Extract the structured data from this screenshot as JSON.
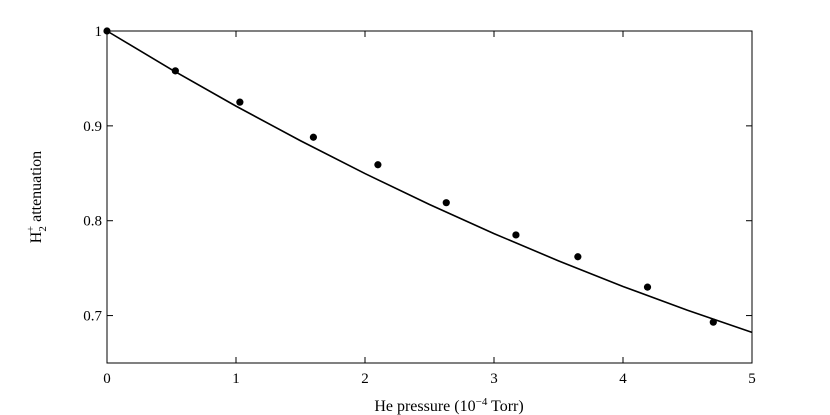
{
  "chart_data": {
    "type": "scatter",
    "xlabel": {
      "prefix": "He pressure (10",
      "sup": "−4",
      "suffix": " Torr)"
    },
    "ylabel": {
      "base": "H",
      "sub": "2",
      "sup": "+",
      "suffix": " attenuation"
    },
    "xlim": [
      0,
      5
    ],
    "ylim": [
      0.65,
      1.0
    ],
    "x_ticks": [
      0,
      1,
      2,
      3,
      4,
      5
    ],
    "y_ticks": [
      0.7,
      0.8,
      0.9,
      1.0
    ],
    "x_tick_labels": [
      "0",
      "1",
      "2",
      "3",
      "4",
      "5"
    ],
    "y_tick_labels": [
      "0.7",
      "0.8",
      "0.9",
      "1"
    ],
    "grid": false,
    "legend": "none",
    "series": [
      {
        "kind": "points",
        "x": [
          0,
          0.53,
          1.03,
          1.6,
          2.1,
          2.63,
          3.17,
          3.65,
          4.19,
          4.7
        ],
        "y": [
          1.0,
          0.958,
          0.925,
          0.888,
          0.859,
          0.819,
          0.785,
          0.762,
          0.73,
          0.693
        ]
      },
      {
        "kind": "fit-line",
        "x": [
          0,
          0.5,
          1.0,
          1.5,
          2.0,
          2.5,
          3.0,
          3.5,
          4.0,
          4.5,
          5.0
        ],
        "y": [
          1.0,
          0.9594,
          0.9208,
          0.8843,
          0.8497,
          0.8171,
          0.7864,
          0.7577,
          0.7307,
          0.7056,
          0.6823
        ]
      }
    ]
  }
}
